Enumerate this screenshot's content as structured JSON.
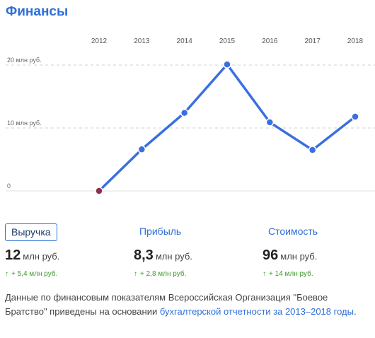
{
  "title": "Финансы",
  "chart_data": {
    "type": "line",
    "x": [
      "2012",
      "2013",
      "2014",
      "2015",
      "2016",
      "2017",
      "2018"
    ],
    "series": [
      {
        "values": [
          0,
          6.6,
          12.4,
          20.1,
          10.9,
          6.5,
          11.8
        ]
      }
    ],
    "ytick_labels": [
      "0",
      "10 млн руб.",
      "20 млн руб."
    ],
    "yticks": [
      0,
      10,
      20
    ],
    "ylim": [
      0,
      20
    ],
    "grid": true,
    "colors": {
      "line": "#3b6fe0",
      "point": "#3b6fe0",
      "first_point": "#8e2f4c",
      "grid": "#d0d0d0"
    }
  },
  "metrics": [
    {
      "label": "Выручка",
      "value": "12",
      "unit": "млн руб.",
      "delta": "+ 5,4 млн руб.",
      "active": true
    },
    {
      "label": "Прибыль",
      "value": "8,3",
      "unit": "млн руб.",
      "delta": "+ 2,8 млн руб.",
      "active": false
    },
    {
      "label": "Стоимость",
      "value": "96",
      "unit": "млн руб.",
      "delta": "+ 14 млн руб.",
      "active": false
    }
  ],
  "arrow_icon": "↑",
  "note": {
    "text": "Данные по финансовым показателям Всероссийская Организация \"Боевое Братство\" приведены на основании ",
    "link": "бухгалтерской отчетности за 2013–2018 годы",
    "end": "."
  }
}
